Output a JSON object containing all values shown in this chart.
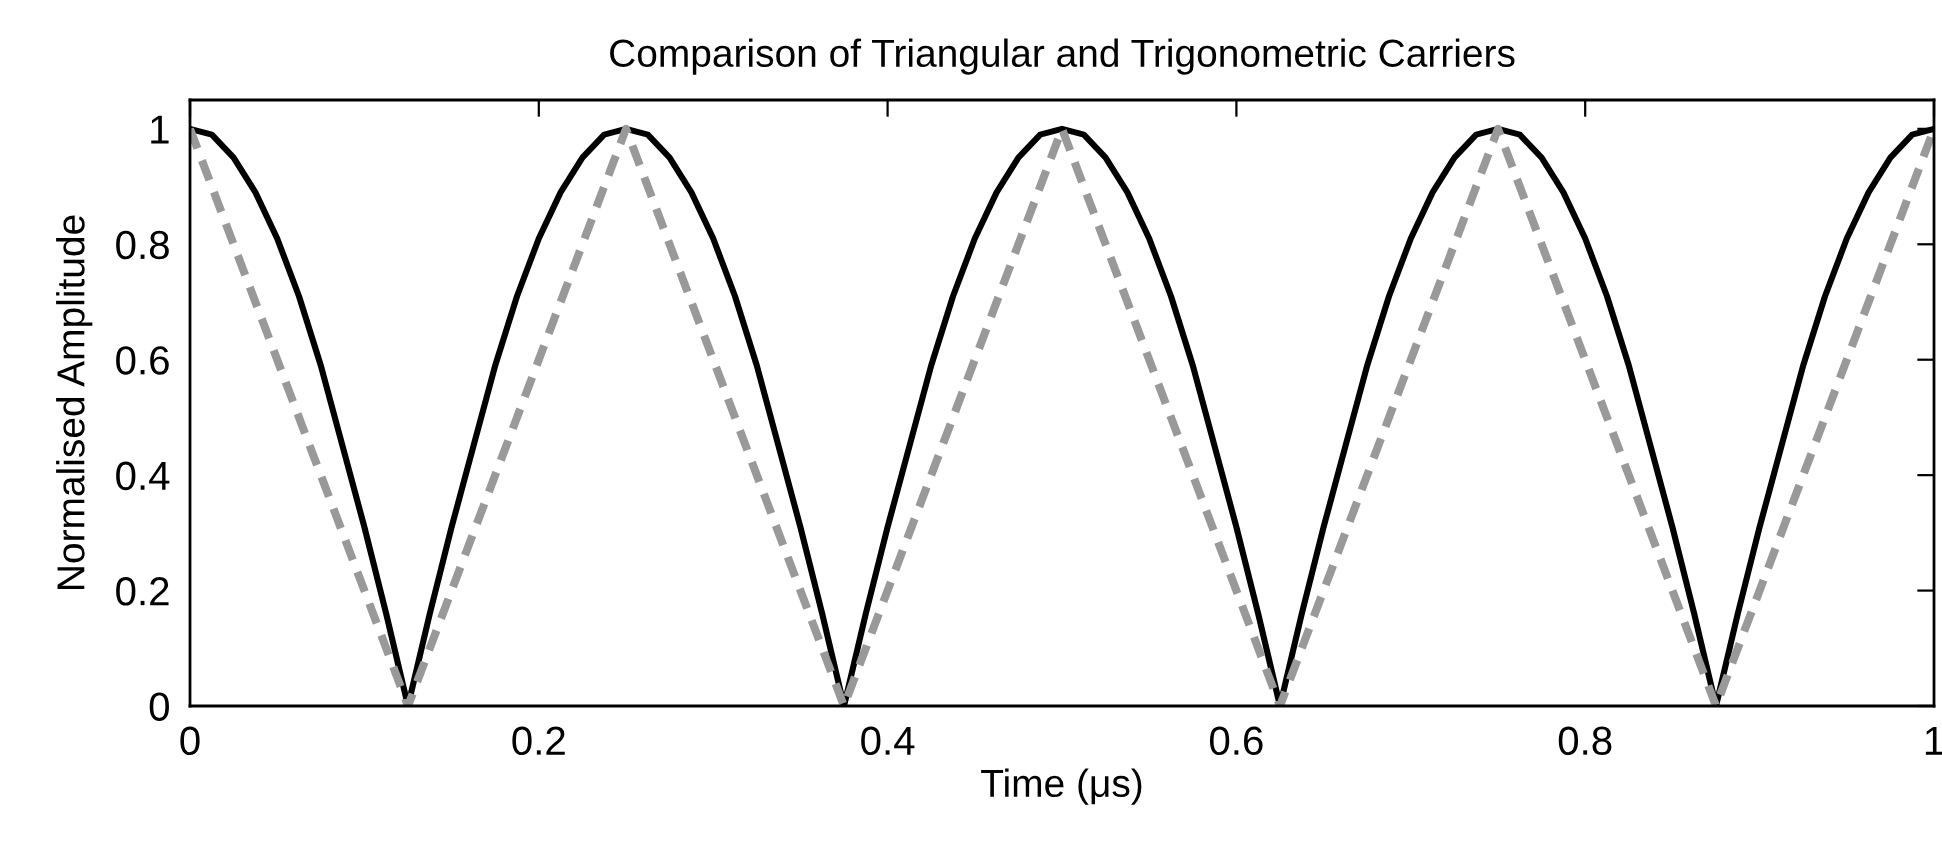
{
  "chart_data": {
    "type": "line",
    "title": "Comparison of Triangular and Trigonometric Carriers",
    "xlabel": "Time (μs)",
    "ylabel": "Normalised Amplitude",
    "xlim": [
      0,
      1
    ],
    "ylim": [
      0,
      1.05
    ],
    "xticks": [
      0,
      0.2,
      0.4,
      0.6,
      0.8,
      1
    ],
    "yticks": [
      0,
      0.2,
      0.4,
      0.6,
      0.8,
      1
    ],
    "series": [
      {
        "color": "#000000",
        "line_style": "solid",
        "x": [
          0,
          0.0125,
          0.025,
          0.0375,
          0.05,
          0.0625,
          0.075,
          0.0875,
          0.1,
          0.1125,
          0.125,
          0.1375,
          0.15,
          0.1625,
          0.175,
          0.1875,
          0.2,
          0.2125,
          0.225,
          0.2375,
          0.25,
          0.2625,
          0.275,
          0.2875,
          0.3,
          0.3125,
          0.325,
          0.3375,
          0.35,
          0.3625,
          0.375,
          0.3875,
          0.4,
          0.4125,
          0.425,
          0.4375,
          0.45,
          0.4625,
          0.475,
          0.4875,
          0.5,
          0.5125,
          0.525,
          0.5375,
          0.55,
          0.5625,
          0.575,
          0.5875,
          0.6,
          0.6125,
          0.625,
          0.6375,
          0.65,
          0.6625,
          0.675,
          0.6875,
          0.7,
          0.7125,
          0.725,
          0.7375,
          0.75,
          0.7625,
          0.775,
          0.7875,
          0.8,
          0.8125,
          0.825,
          0.8375,
          0.85,
          0.8625,
          0.875,
          0.8875,
          0.9,
          0.9125,
          0.925,
          0.9375,
          0.95,
          0.9625,
          0.975,
          0.9875,
          1
        ],
        "values": [
          1,
          0.99,
          0.95,
          0.89,
          0.81,
          0.71,
          0.59,
          0.45,
          0.31,
          0.16,
          0,
          0.16,
          0.31,
          0.45,
          0.59,
          0.71,
          0.81,
          0.89,
          0.95,
          0.99,
          1,
          0.99,
          0.95,
          0.89,
          0.81,
          0.71,
          0.59,
          0.45,
          0.31,
          0.16,
          0,
          0.16,
          0.31,
          0.45,
          0.59,
          0.71,
          0.81,
          0.89,
          0.95,
          0.99,
          1,
          0.99,
          0.95,
          0.89,
          0.81,
          0.71,
          0.59,
          0.45,
          0.31,
          0.16,
          0,
          0.16,
          0.31,
          0.45,
          0.59,
          0.71,
          0.81,
          0.89,
          0.95,
          0.99,
          1,
          0.99,
          0.95,
          0.89,
          0.81,
          0.71,
          0.59,
          0.45,
          0.31,
          0.16,
          0,
          0.16,
          0.31,
          0.45,
          0.59,
          0.71,
          0.81,
          0.89,
          0.95,
          0.99,
          1
        ]
      },
      {
        "color": "#999999",
        "line_style": "dashed",
        "x": [
          0,
          0.125,
          0.25,
          0.375,
          0.5,
          0.625,
          0.75,
          0.875,
          1
        ],
        "values": [
          1,
          0,
          1,
          0,
          1,
          0,
          1,
          0,
          1
        ]
      }
    ]
  }
}
